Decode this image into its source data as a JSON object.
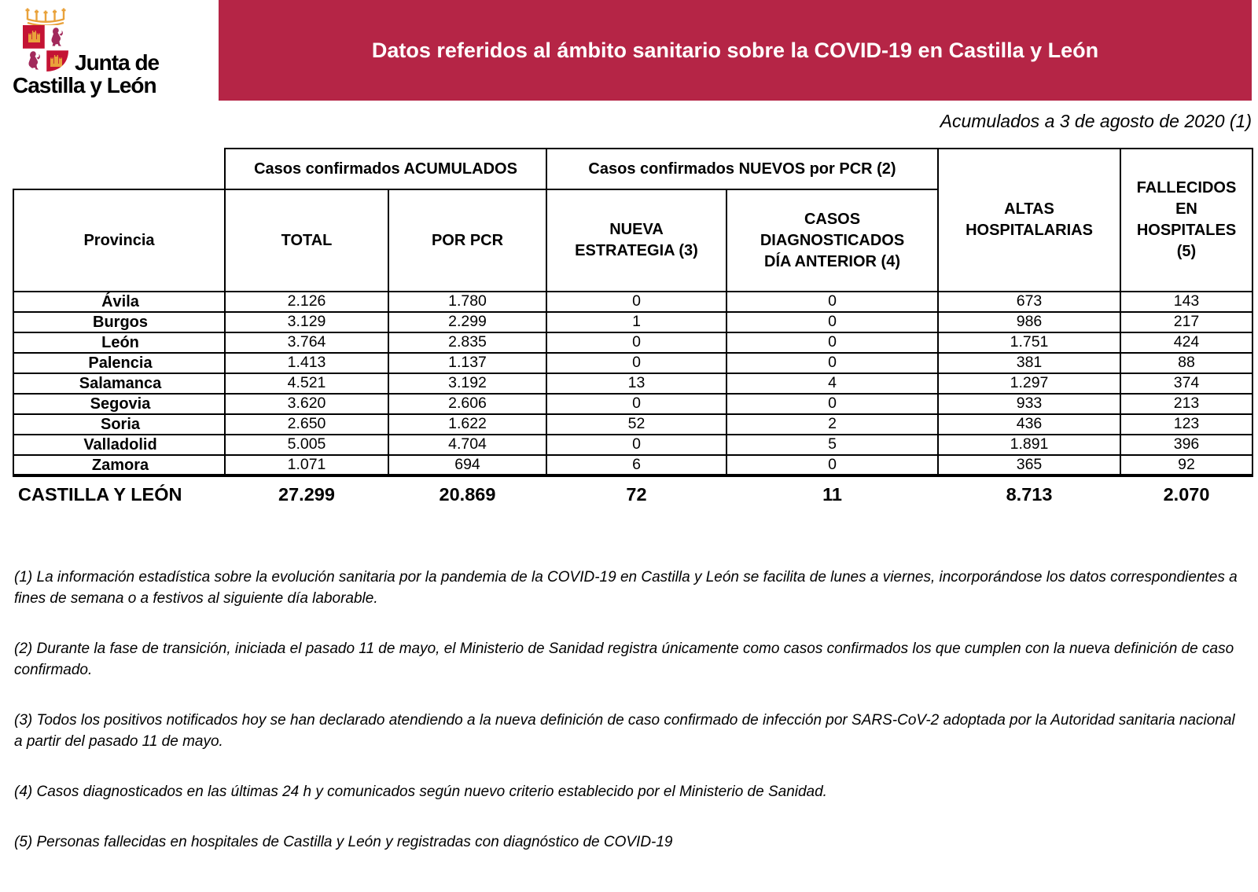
{
  "logo": {
    "line1": "Junta de",
    "line2": "Castilla y León"
  },
  "banner": {
    "title": "Datos referidos al ámbito sanitario sobre la COVID-19 en Castilla y León"
  },
  "date_line": "Acumulados a 3 de agosto de 2020 (1)",
  "colors": {
    "banner": "#B52546",
    "shield_red": "#C41334",
    "gold": "#E9A23B",
    "lion": "#A2295B"
  },
  "table": {
    "group_headers": {
      "accumulated": "Casos confirmados ACUMULADOS",
      "new_pcr": "Casos confirmados NUEVOS por PCR (2)"
    },
    "columns": {
      "province": "Provincia",
      "total": "TOTAL",
      "por_pcr": "POR PCR",
      "nueva_estrategia": "NUEVA\nESTRATEGIA (3)",
      "casos_diagnosticados": "CASOS\nDIAGNOSTICADOS\nDÍA ANTERIOR (4)",
      "altas": "ALTAS\nHOSPITALARIAS",
      "fallecidos": "FALLECIDOS\nEN\nHOSPITALES\n(5)"
    },
    "rows": [
      [
        "Ávila",
        "2.126",
        "1.780",
        "0",
        "0",
        "673",
        "143"
      ],
      [
        "Burgos",
        "3.129",
        "2.299",
        "1",
        "0",
        "986",
        "217"
      ],
      [
        "León",
        "3.764",
        "2.835",
        "0",
        "0",
        "1.751",
        "424"
      ],
      [
        "Palencia",
        "1.413",
        "1.137",
        "0",
        "0",
        "381",
        "88"
      ],
      [
        "Salamanca",
        "4.521",
        "3.192",
        "13",
        "4",
        "1.297",
        "374"
      ],
      [
        "Segovia",
        "3.620",
        "2.606",
        "0",
        "0",
        "933",
        "213"
      ],
      [
        "Soria",
        "2.650",
        "1.622",
        "52",
        "2",
        "436",
        "123"
      ],
      [
        "Valladolid",
        "5.005",
        "4.704",
        "0",
        "5",
        "1.891",
        "396"
      ],
      [
        "Zamora",
        "1.071",
        "694",
        "6",
        "0",
        "365",
        "92"
      ]
    ],
    "total_row": {
      "province": "CASTILLA Y LEÓN",
      "total": "27.299",
      "por_pcr": "20.869",
      "nueva": "72",
      "diag": "11",
      "altas": "8.713",
      "fallecidos": "2.070"
    }
  },
  "footnotes": [
    "(1) La información estadística sobre la evolución sanitaria por la pandemia de la COVID-19 en Castilla y León se facilita de lunes a viernes, incorporándose los datos correspondientes a fines de semana o a festivos al siguiente día laborable.",
    "(2) Durante la fase de transición, iniciada el pasado 11 de mayo, el Ministerio de Sanidad registra únicamente como casos confirmados los que cumplen con la nueva definición de caso confirmado.",
    "(3) Todos los positivos notificados hoy se han declarado atendiendo a la nueva definición de caso confirmado de infección por SARS-CoV-2 adoptada por la Autoridad sanitaria nacional a partir del pasado 11 de mayo.",
    "(4) Casos diagnosticados en las últimas 24 h y comunicados según nuevo criterio establecido por el Ministerio de Sanidad.",
    "(5) Personas fallecidas en hospitales de Castilla y León y registradas con diagnóstico de COVID-19"
  ]
}
